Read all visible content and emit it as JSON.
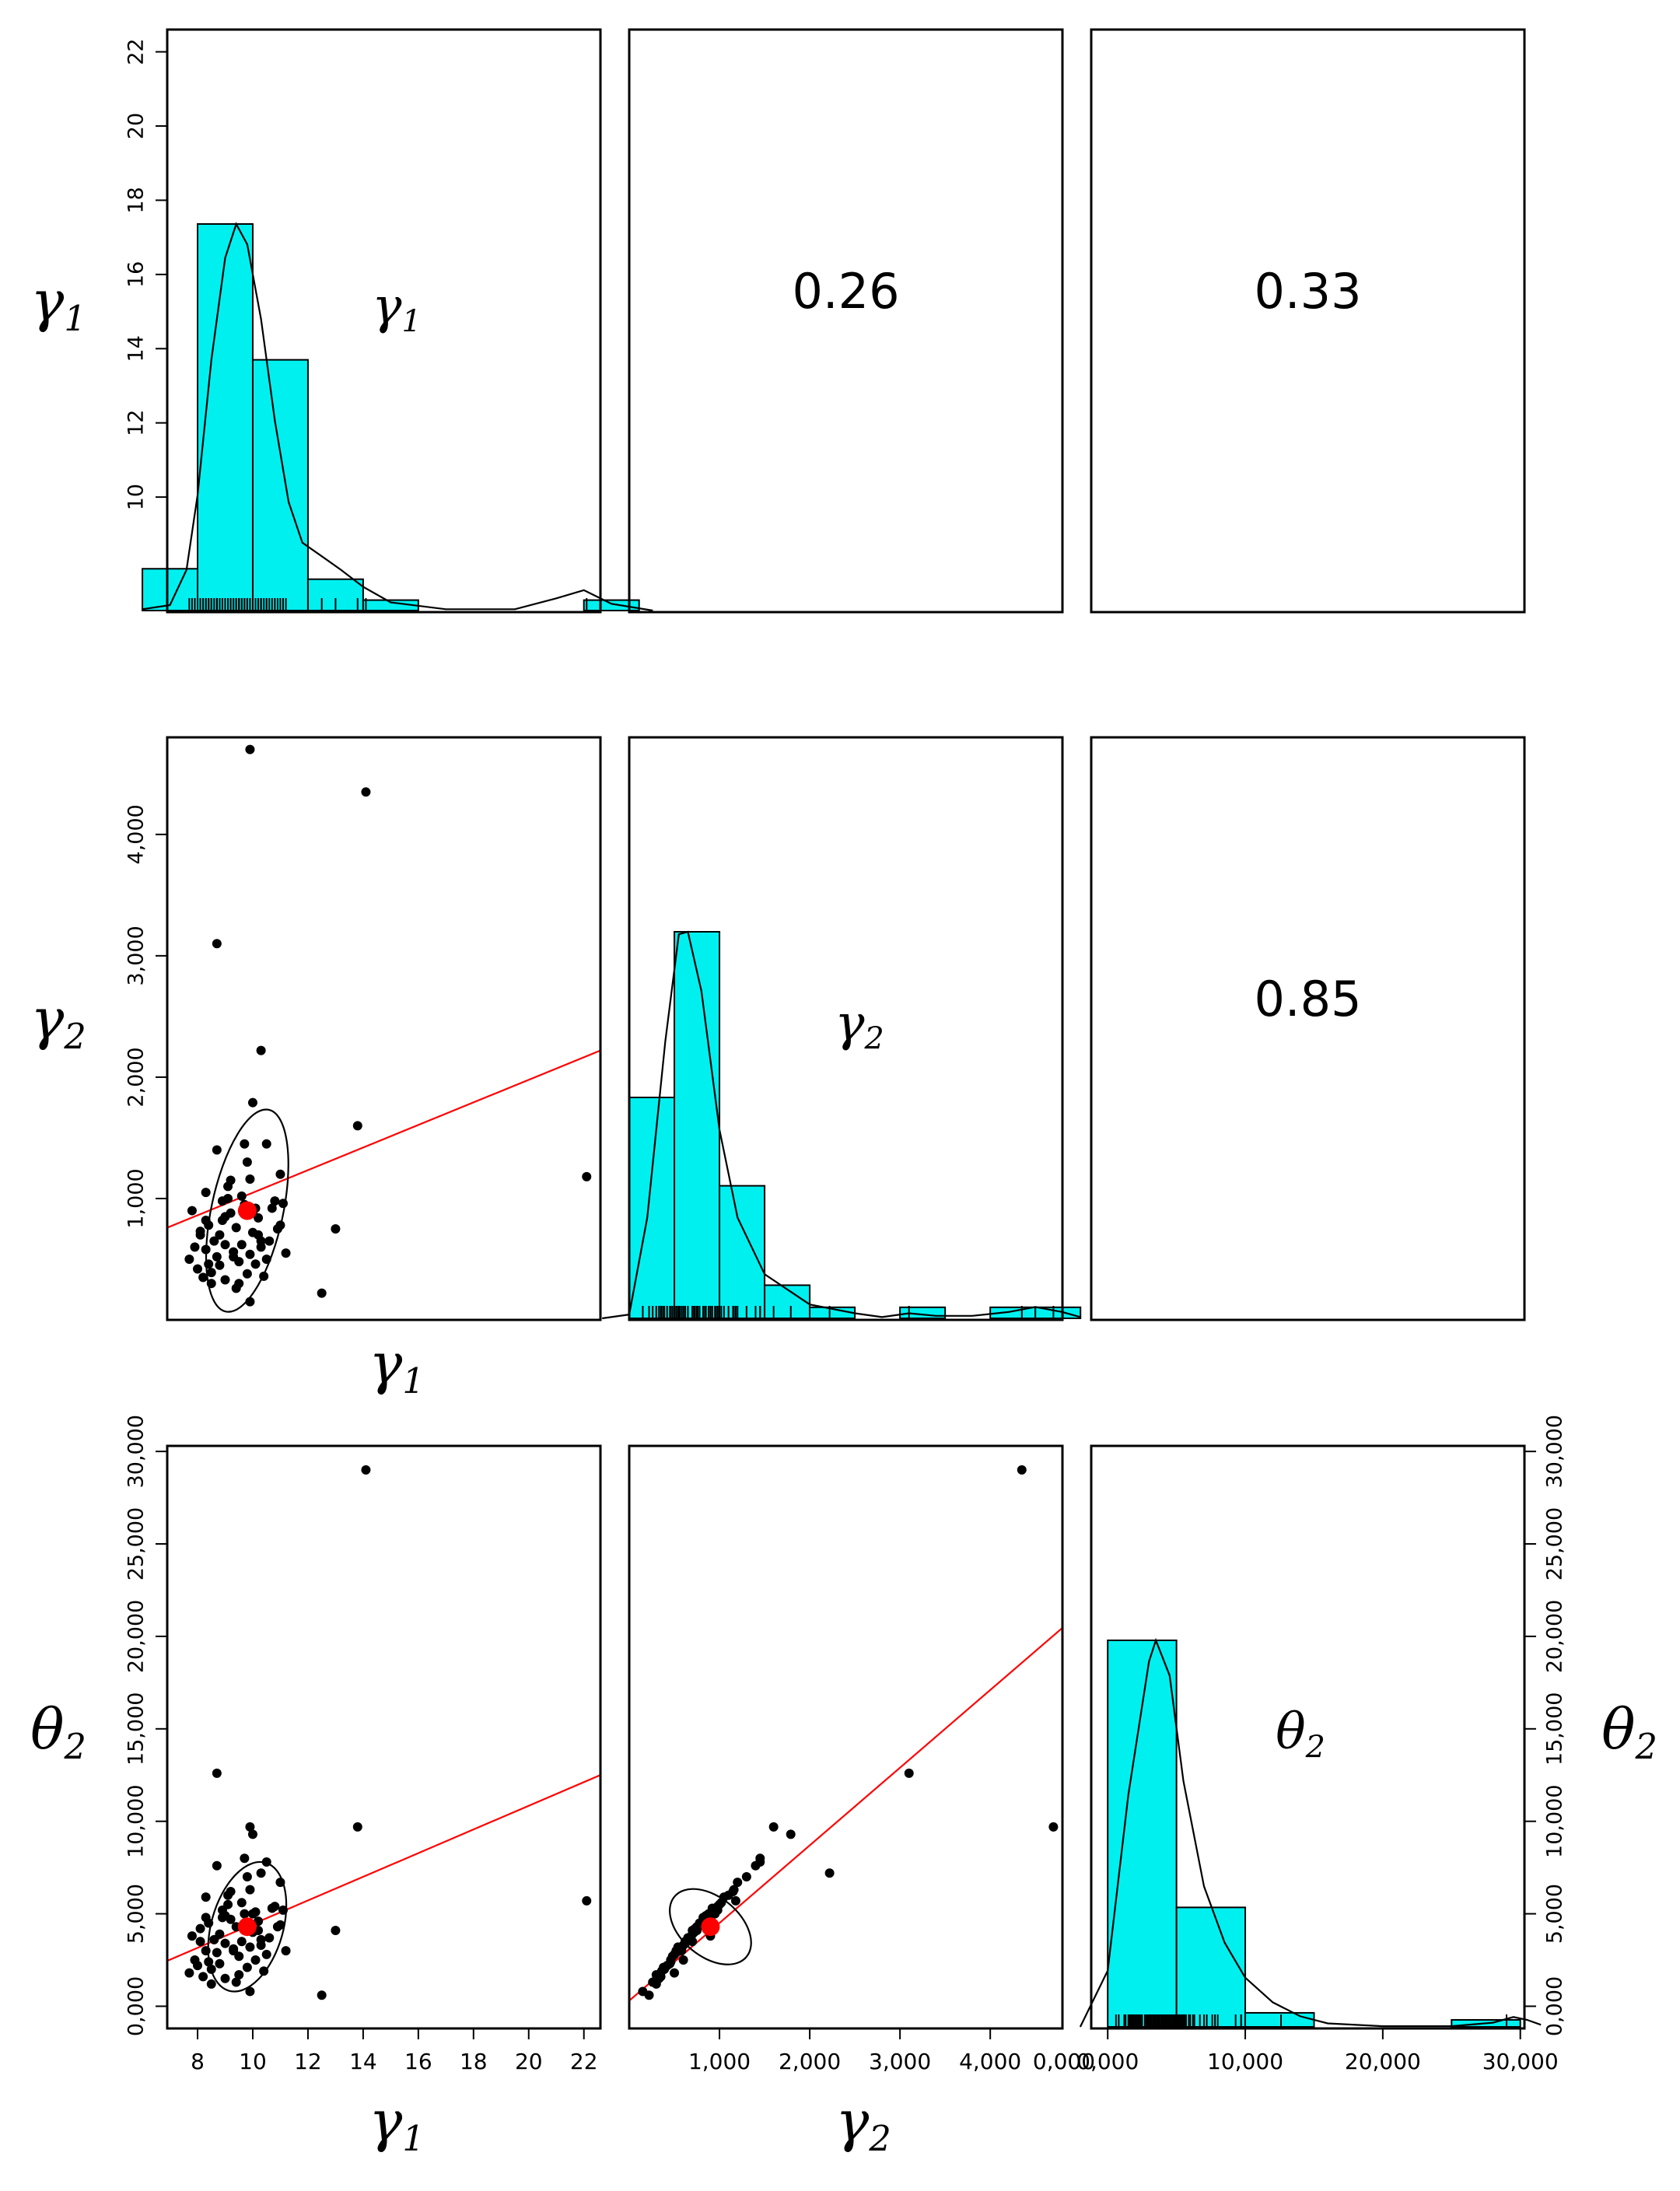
{
  "chart_data": {
    "type": "scatter-matrix",
    "variables": [
      {
        "id": "g1",
        "symbol": "γ",
        "subscript": "1"
      },
      {
        "id": "g2",
        "symbol": "γ",
        "subscript": "2"
      },
      {
        "id": "t2",
        "symbol": "θ",
        "subscript": "2"
      }
    ],
    "correlations": [
      {
        "row": 0,
        "col": 1,
        "text": "0.26"
      },
      {
        "row": 0,
        "col": 2,
        "text": "0.33"
      },
      {
        "row": 1,
        "col": 2,
        "text": "0.85"
      }
    ],
    "axes": {
      "g1": {
        "range": [
          6.9,
          22.6
        ],
        "ticks": [
          8,
          10,
          12,
          14,
          16,
          18,
          20,
          22
        ],
        "tick_labels": [
          "8",
          "10",
          "12",
          "14",
          "16",
          "18",
          "20",
          "22"
        ]
      },
      "g1_left": {
        "ticks": [
          10,
          12,
          14,
          16,
          18,
          20,
          22
        ],
        "tick_labels": [
          "10",
          "12",
          "14",
          "16",
          "18",
          "20",
          "22"
        ]
      },
      "g2": {
        "range": [
          0,
          4800
        ],
        "ticks": [
          1000,
          2000,
          3000,
          4000
        ],
        "tick_labels": [
          "1,000",
          "2,000",
          "3,000",
          "4,000"
        ]
      },
      "g2_bottom": {
        "ticks": [
          1000,
          2000,
          3000,
          4000
        ],
        "tick_labels": [
          "1,000",
          "2,000",
          "3,000",
          "4,000"
        ]
      },
      "t2": {
        "range": [
          -1200,
          30300
        ],
        "ticks": [
          0,
          5000,
          10000,
          15000,
          20000,
          25000,
          30000
        ],
        "tick_labels": [
          "0,000",
          "5,000",
          "10,000",
          "15,000",
          "20,000",
          "25,000",
          "30,000"
        ]
      },
      "t2_bottom": {
        "ticks": [
          0,
          10000,
          20000,
          30000
        ],
        "tick_labels": [
          "0,000",
          "10,000",
          "20,000",
          "30,000"
        ]
      },
      "g2_left_extra_label": "0,000"
    },
    "histograms": {
      "g1": {
        "bin_edges": [
          6,
          8,
          10,
          12,
          14,
          16,
          18,
          20,
          22,
          24
        ],
        "counts": [
          4,
          37,
          24,
          3,
          1,
          0,
          0,
          0,
          1
        ],
        "density": [
          [
            6.0,
            0.02
          ],
          [
            7.0,
            0.08
          ],
          [
            7.6,
            0.6
          ],
          [
            8.0,
            1.7
          ],
          [
            8.5,
            3.7
          ],
          [
            9.0,
            5.2
          ],
          [
            9.4,
            5.7
          ],
          [
            9.8,
            5.4
          ],
          [
            10.3,
            4.3
          ],
          [
            10.8,
            2.8
          ],
          [
            11.3,
            1.6
          ],
          [
            11.8,
            1.0
          ],
          [
            12.5,
            0.8
          ],
          [
            13.2,
            0.6
          ],
          [
            14.0,
            0.35
          ],
          [
            15.0,
            0.12
          ],
          [
            17.0,
            0.02
          ],
          [
            19.5,
            0.02
          ],
          [
            21.0,
            0.18
          ],
          [
            22.0,
            0.3
          ],
          [
            23.0,
            0.1
          ],
          [
            24.5,
            0.0
          ]
        ]
      },
      "g2": {
        "bin_edges": [
          0,
          500,
          1000,
          1500,
          2000,
          2500,
          3000,
          3500,
          4000,
          4500,
          5000
        ],
        "counts": [
          20,
          35,
          12,
          3,
          1,
          0,
          1,
          0,
          1,
          1
        ],
        "density": [
          [
            -300,
            0
          ],
          [
            0,
            0.3
          ],
          [
            200,
            8
          ],
          [
            400,
            22
          ],
          [
            550,
            30.5
          ],
          [
            650,
            30.7
          ],
          [
            800,
            26
          ],
          [
            1000,
            15
          ],
          [
            1200,
            8
          ],
          [
            1500,
            3.5
          ],
          [
            2000,
            1.1
          ],
          [
            2500,
            0.4
          ],
          [
            2800,
            0.1
          ],
          [
            3100,
            0.4
          ],
          [
            3400,
            0.2
          ],
          [
            3800,
            0.2
          ],
          [
            4200,
            0.5
          ],
          [
            4500,
            0.9
          ],
          [
            4800,
            0.5
          ],
          [
            5000,
            0.1
          ]
        ]
      },
      "t2": {
        "bin_edges": [
          0,
          5000,
          10000,
          15000,
          20000,
          25000,
          30000
        ],
        "counts": [
          55,
          17,
          2,
          0,
          0,
          1
        ],
        "density": [
          [
            -2000,
            0
          ],
          [
            0,
            8
          ],
          [
            1500,
            33
          ],
          [
            3000,
            52
          ],
          [
            3500,
            55
          ],
          [
            4500,
            50
          ],
          [
            5500,
            35
          ],
          [
            7000,
            20
          ],
          [
            8500,
            12
          ],
          [
            10000,
            7
          ],
          [
            12000,
            3.5
          ],
          [
            14000,
            1.5
          ],
          [
            16000,
            0.5
          ],
          [
            20000,
            0.1
          ],
          [
            25000,
            0.1
          ],
          [
            28000,
            0.6
          ],
          [
            29500,
            1.4
          ],
          [
            30500,
            1.0
          ],
          [
            31500,
            0.3
          ]
        ]
      }
    },
    "points": {
      "g1": [
        7.7,
        7.9,
        7.8,
        8.0,
        8.2,
        8.1,
        8.3,
        8.4,
        8.5,
        8.3,
        8.6,
        8.7,
        8.5,
        8.8,
        8.9,
        9.0,
        8.8,
        9.1,
        9.2,
        9.0,
        9.3,
        9.4,
        9.2,
        9.5,
        9.6,
        9.4,
        9.7,
        9.8,
        9.6,
        9.9,
        10.0,
        10.1,
        9.8,
        10.2,
        10.3,
        10.4,
        10.1,
        10.5,
        10.6,
        10.8,
        11.0,
        11.2,
        8.3,
        8.7,
        9.0,
        9.5,
        9.9,
        10.2,
        10.5,
        10.7,
        11.0,
        8.4,
        9.1,
        9.7,
        10.3,
        8.1,
        8.9,
        9.3,
        10.0,
        10.9,
        11.1,
        12.5,
        13.0,
        8.7,
        10.3,
        10.0,
        13.8,
        14.1,
        22.1,
        9.9,
        9.9
      ],
      "g2": [
        500,
        600,
        900,
        420,
        350,
        700,
        580,
        460,
        300,
        820,
        650,
        520,
        390,
        700,
        980,
        620,
        450,
        1100,
        880,
        330,
        560,
        760,
        1150,
        480,
        620,
        260,
        950,
        380,
        1020,
        540,
        720,
        460,
        1300,
        840,
        600,
        360,
        920,
        1450,
        650,
        980,
        780,
        550,
        1050,
        1400,
        850,
        300,
        1160,
        700,
        500,
        920,
        1200,
        780,
        1000,
        1450,
        650,
        730,
        820,
        520,
        880,
        750,
        960,
        220,
        750,
        3100,
        2220,
        1790,
        1600,
        4350,
        1180,
        4700,
        150
      ],
      "t2": [
        1800,
        2500,
        3800,
        2200,
        1600,
        3500,
        3000,
        2400,
        1200,
        4800,
        3600,
        2900,
        2000,
        3900,
        5200,
        3400,
        2300,
        6000,
        4700,
        1500,
        3100,
        4300,
        6200,
        2700,
        3500,
        1300,
        5000,
        2100,
        5600,
        3200,
        4000,
        2500,
        7000,
        4600,
        3300,
        1900,
        5100,
        7800,
        3700,
        5400,
        4400,
        3000,
        5900,
        7600,
        4900,
        1700,
        6300,
        4100,
        2800,
        5300,
        6700,
        4500,
        5500,
        8000,
        3600,
        4200,
        4800,
        3000,
        5000,
        4300,
        5200,
        600,
        4100,
        12600,
        7200,
        9300,
        9700,
        29000,
        5700,
        9700,
        800
      ]
    },
    "means": {
      "g1": 9.8,
      "g2": 900,
      "t2": 4300
    },
    "regression_lines": [
      {
        "x": "g1",
        "y": "g2",
        "intercept": 118,
        "slope": 93
      },
      {
        "x": "g1",
        "y": "t2",
        "intercept": -1960,
        "slope": 640
      },
      {
        "x": "g2",
        "y": "t2",
        "intercept": 300,
        "slope": 4.2
      }
    ],
    "ellipses": [
      {
        "x": "g1",
        "y": "g2",
        "rx_units": 1.3,
        "ry_units": 850,
        "rotation_deg": 12
      },
      {
        "x": "g1",
        "y": "t2",
        "rx_units": 1.3,
        "ry_units": 3600,
        "rotation_deg": 16
      },
      {
        "x": "g2",
        "y": "t2",
        "rx_units": 520,
        "ry_units": 1600,
        "rotation_deg": 40
      }
    ]
  }
}
